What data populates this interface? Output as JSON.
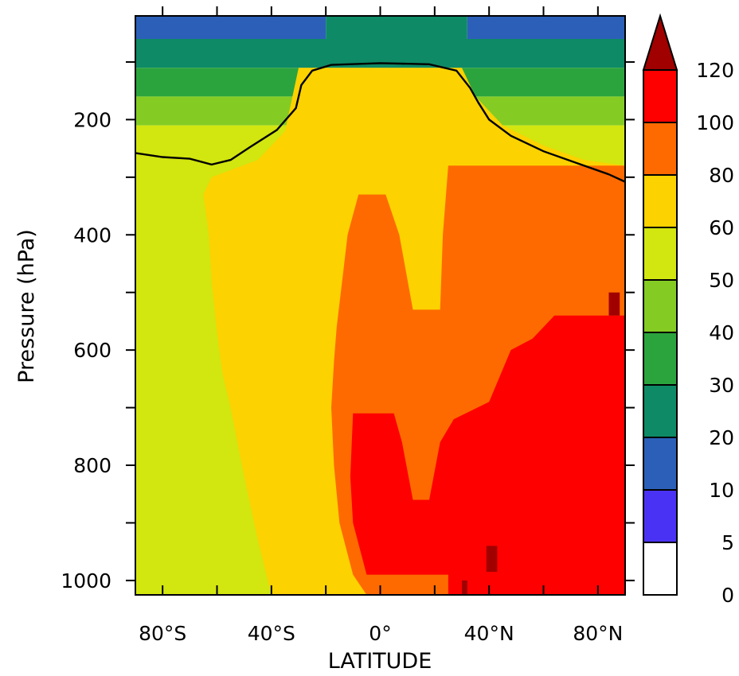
{
  "chart_data": {
    "type": "heatmap",
    "xlabel": "LATITUDE",
    "ylabel": "Pressure (hPa)",
    "xlim": [
      -90,
      90
    ],
    "ylim": [
      1025,
      20
    ],
    "y_scale": "linear, inverted",
    "x_ticks": [
      {
        "value": -80,
        "label": "80°S"
      },
      {
        "value": -40,
        "label": "40°S"
      },
      {
        "value": 0,
        "label": "0°"
      },
      {
        "value": 40,
        "label": "40°N"
      },
      {
        "value": 80,
        "label": "80°N"
      }
    ],
    "y_ticks": [
      {
        "value": 200,
        "label": "200"
      },
      {
        "value": 400,
        "label": "400"
      },
      {
        "value": 600,
        "label": "600"
      },
      {
        "value": 800,
        "label": "800"
      },
      {
        "value": 1000,
        "label": "1000"
      }
    ],
    "colorbar": {
      "levels": [
        "0",
        "5",
        "10",
        "20",
        "30",
        "40",
        "50",
        "60",
        "80",
        "100",
        "120"
      ],
      "colors": [
        "#ffffff",
        "#4a32f5",
        "#2c60b8",
        "#0e8a66",
        "#2ca43e",
        "#84cc24",
        "#d2e610",
        "#fcd200",
        "#fe6a00",
        "#fe0000",
        "#a00000"
      ],
      "extend": "max"
    },
    "regions": [
      {
        "level": "10-20",
        "vertices": [
          [
            -90,
            20
          ],
          [
            -20,
            20
          ],
          [
            -20,
            60
          ],
          [
            -90,
            60
          ]
        ]
      },
      {
        "level": "20-30",
        "vertices": [
          [
            -20,
            20
          ],
          [
            32,
            20
          ],
          [
            32,
            60
          ],
          [
            -20,
            60
          ]
        ]
      },
      {
        "level": "10-20",
        "vertices": [
          [
            32,
            20
          ],
          [
            90,
            20
          ],
          [
            90,
            60
          ],
          [
            32,
            60
          ]
        ]
      },
      {
        "level": "20-30",
        "vertices": [
          [
            -90,
            60
          ],
          [
            90,
            60
          ],
          [
            90,
            110
          ],
          [
            -90,
            110
          ]
        ]
      },
      {
        "level": "30-40",
        "vertices": [
          [
            -90,
            110
          ],
          [
            90,
            110
          ],
          [
            90,
            160
          ],
          [
            -90,
            160
          ]
        ]
      },
      {
        "level": "40-50",
        "vertices": [
          [
            -90,
            160
          ],
          [
            90,
            160
          ],
          [
            90,
            210
          ],
          [
            -90,
            210
          ]
        ]
      },
      {
        "level": "50-60",
        "vertices": [
          [
            -90,
            210
          ],
          [
            90,
            210
          ],
          [
            90,
            1025
          ],
          [
            -90,
            1025
          ]
        ]
      },
      {
        "level": "60-80",
        "vertices": [
          [
            -30,
            110
          ],
          [
            30,
            110
          ],
          [
            35,
            160
          ],
          [
            45,
            210
          ],
          [
            60,
            245
          ],
          [
            75,
            270
          ],
          [
            90,
            280
          ],
          [
            90,
            1025
          ],
          [
            -40,
            1025
          ],
          [
            -45,
            930
          ],
          [
            -50,
            820
          ],
          [
            -55,
            700
          ],
          [
            -58,
            640
          ],
          [
            -60,
            570
          ],
          [
            -62,
            480
          ],
          [
            -63,
            400
          ],
          [
            -65,
            330
          ],
          [
            -62,
            300
          ],
          [
            -45,
            270
          ],
          [
            -35,
            220
          ]
        ]
      },
      {
        "level": "80-100",
        "vertices": [
          [
            25,
            280
          ],
          [
            90,
            280
          ],
          [
            90,
            1025
          ],
          [
            -5,
            1025
          ],
          [
            -10,
            990
          ],
          [
            -15,
            900
          ],
          [
            -17,
            800
          ],
          [
            -18,
            700
          ],
          [
            -17,
            620
          ],
          [
            -16,
            560
          ],
          [
            -14,
            480
          ],
          [
            -12,
            400
          ],
          [
            -8,
            330
          ],
          [
            2,
            330
          ],
          [
            7,
            400
          ],
          [
            12,
            530
          ],
          [
            22,
            530
          ],
          [
            23,
            400
          ]
        ]
      },
      {
        "level": "100-120",
        "vertices": [
          [
            -10,
            710
          ],
          [
            5,
            710
          ],
          [
            8,
            760
          ],
          [
            12,
            860
          ],
          [
            18,
            860
          ],
          [
            22,
            760
          ],
          [
            27,
            720
          ],
          [
            40,
            690
          ],
          [
            48,
            600
          ],
          [
            56,
            580
          ],
          [
            64,
            540
          ],
          [
            90,
            540
          ],
          [
            90,
            1025
          ],
          [
            25,
            1025
          ],
          [
            25,
            990
          ],
          [
            -5,
            990
          ],
          [
            -10,
            900
          ],
          [
            -11,
            820
          ]
        ]
      },
      {
        "level": ">120",
        "vertices": [
          [
            39,
            940
          ],
          [
            43,
            940
          ],
          [
            43,
            985
          ],
          [
            39,
            985
          ]
        ]
      },
      {
        "level": ">120",
        "vertices": [
          [
            30,
            1000
          ],
          [
            32,
            1000
          ],
          [
            32,
            1025
          ],
          [
            30,
            1025
          ]
        ]
      },
      {
        "level": ">120",
        "vertices": [
          [
            84,
            500
          ],
          [
            88,
            500
          ],
          [
            88,
            540
          ],
          [
            84,
            540
          ]
        ]
      }
    ],
    "tropopause_line": [
      [
        -90,
        258
      ],
      [
        -80,
        265
      ],
      [
        -70,
        268
      ],
      [
        -62,
        278
      ],
      [
        -55,
        270
      ],
      [
        -48,
        248
      ],
      [
        -38,
        218
      ],
      [
        -31,
        180
      ],
      [
        -29,
        140
      ],
      [
        -25,
        115
      ],
      [
        -18,
        105
      ],
      [
        0,
        102
      ],
      [
        18,
        104
      ],
      [
        28,
        115
      ],
      [
        33,
        145
      ],
      [
        36,
        170
      ],
      [
        40,
        200
      ],
      [
        48,
        228
      ],
      [
        60,
        255
      ],
      [
        72,
        275
      ],
      [
        84,
        295
      ],
      [
        90,
        308
      ]
    ]
  }
}
